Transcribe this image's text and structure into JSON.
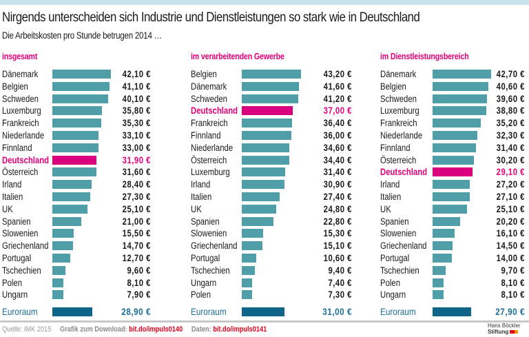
{
  "header": {
    "title": "Nirgends unterscheiden sich Industrie und Dienstleistungen so stark wie in Deutschland",
    "subtitle": "Die Arbeitskosten pro Stunde betrugen 2014 …"
  },
  "colors": {
    "bar": "#4f9ea8",
    "highlight": "#d9007d",
    "euro": "#0f6487",
    "panel_title": "#e2007a",
    "link": "#e3001b"
  },
  "chart_data": [
    {
      "type": "bar",
      "orientation": "horizontal",
      "title": "insgesamt",
      "unit": "€",
      "xlim": [
        0,
        43.2
      ],
      "categories": [
        "Dänemark",
        "Belgien",
        "Schweden",
        "Luxemburg",
        "Frankreich",
        "Niederlande",
        "Finnland",
        "Deutschland",
        "Österreich",
        "Irland",
        "Italien",
        "UK",
        "Spanien",
        "Slowenien",
        "Griechenland",
        "Portugal",
        "Tschechien",
        "Polen",
        "Ungarn"
      ],
      "values": [
        42.1,
        41.1,
        40.1,
        35.8,
        35.3,
        33.1,
        33.0,
        31.9,
        31.6,
        28.4,
        27.3,
        25.1,
        21.0,
        15.5,
        14.7,
        12.7,
        9.6,
        8.1,
        7.9
      ],
      "value_labels": [
        "42,10 €",
        "41,10 €",
        "40,10 €",
        "35,80 €",
        "35,30 €",
        "33,10 €",
        "33,00 €",
        "31,90 €",
        "31,60 €",
        "28,40 €",
        "27,30 €",
        "25,10 €",
        "21,00 €",
        "15,50 €",
        "14,70 €",
        "12,70 €",
        "9,60 €",
        "8,10 €",
        "7,90 €"
      ],
      "highlight": "Deutschland",
      "reference": {
        "label": "Euroraum",
        "value": 28.9,
        "value_label": "28,90 €"
      }
    },
    {
      "type": "bar",
      "orientation": "horizontal",
      "title": "im verarbeitenden Gewerbe",
      "unit": "€",
      "xlim": [
        0,
        43.2
      ],
      "categories": [
        "Belgien",
        "Dänemark",
        "Schweden",
        "Deutschland",
        "Frankreich",
        "Finnland",
        "Niederlande",
        "Österreich",
        "Luxemburg",
        "Irland",
        "Italien",
        "UK",
        "Spanien",
        "Slowenien",
        "Griechenland",
        "Portugal",
        "Tschechien",
        "Ungarn",
        "Polen"
      ],
      "values": [
        43.2,
        41.6,
        41.2,
        37.0,
        36.4,
        36.0,
        34.6,
        34.4,
        31.4,
        30.9,
        27.4,
        24.8,
        22.8,
        15.3,
        15.1,
        10.6,
        9.4,
        7.4,
        7.3
      ],
      "value_labels": [
        "43,20 €",
        "41,60 €",
        "41,20 €",
        "37,00 €",
        "36,40 €",
        "36,00 €",
        "34,60 €",
        "34,40 €",
        "31,40 €",
        "30,90 €",
        "27,40 €",
        "24,80 €",
        "22,80 €",
        "15,30 €",
        "15,10 €",
        "10,60 €",
        "9,40 €",
        "7,40 €",
        "7,30 €"
      ],
      "highlight": "Deutschland",
      "reference": {
        "label": "Euroraum",
        "value": 31.0,
        "value_label": "31,00 €"
      }
    },
    {
      "type": "bar",
      "orientation": "horizontal",
      "title": "im Dienstleistungsbereich",
      "unit": "€",
      "xlim": [
        0,
        43.2
      ],
      "categories": [
        "Dänemark",
        "Belgien",
        "Schweden",
        "Luxemburg",
        "Frankreich",
        "Niederlande",
        "Finnland",
        "Österreich",
        "Deutschland",
        "Irland",
        "Italien",
        "UK",
        "Spanien",
        "Slowenien",
        "Griechenland",
        "Portugal",
        "Tschechien",
        "Polen",
        "Ungarn"
      ],
      "values": [
        42.7,
        40.6,
        39.6,
        38.8,
        35.2,
        32.3,
        31.4,
        30.2,
        29.1,
        27.2,
        27.1,
        25.1,
        20.2,
        16.1,
        14.5,
        14.0,
        9.7,
        8.1,
        8.1
      ],
      "value_labels": [
        "42,70 €",
        "40,60 €",
        "39,60 €",
        "38,80 €",
        "35,20 €",
        "32,30 €",
        "31,40 €",
        "30,20 €",
        "29,10 €",
        "27,20 €",
        "27,10 €",
        "25,10 €",
        "20,20 €",
        "16,10 €",
        "14,50 €",
        "14,00 €",
        "9,70 €",
        "8,10 €",
        "8,10 €"
      ],
      "highlight": "Deutschland",
      "reference": {
        "label": "Euroraum",
        "value": 27.9,
        "value_label": "27,90 €"
      }
    }
  ],
  "footer": {
    "source": "Quelle: IMK 2015",
    "download_label": "Grafik zum Download:",
    "download_link": "bit.do/impuls0140",
    "data_label": "Daten:",
    "data_link": "bit.do/impuls0141",
    "logo_line1": "Hans Böckler",
    "logo_line2": "Stiftung"
  }
}
